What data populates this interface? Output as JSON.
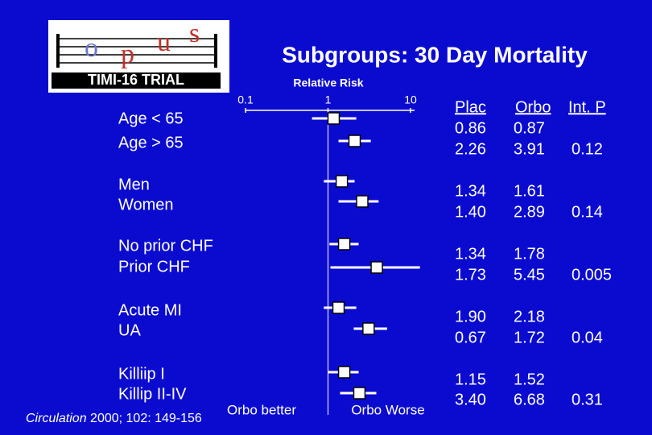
{
  "chart_data": {
    "type": "forest",
    "title": "Subgroups:  30 Day Mortality",
    "xlabel": "Relative Risk",
    "log_scale": true,
    "xlim": [
      0.1,
      10
    ],
    "xticks": [
      0.1,
      1,
      10
    ],
    "categories": [
      "Age < 65",
      "Age > 65",
      "Men",
      "Women",
      "No prior CHF",
      "Prior CHF",
      "Acute MI",
      "UA",
      "Killiip  I",
      "Killip  II-IV"
    ],
    "values": [
      1.17,
      2.1,
      1.47,
      2.6,
      1.57,
      3.9,
      1.34,
      3.1,
      1.57,
      2.4
    ],
    "ci_low": [
      0.64,
      1.34,
      0.89,
      1.34,
      1.04,
      1.07,
      0.89,
      2.05,
      1.0,
      1.4
    ],
    "ci_high": [
      2.2,
      3.3,
      2.1,
      4.1,
      2.35,
      13,
      2.2,
      5.2,
      2.35,
      3.85
    ],
    "color": "#ffffff",
    "annotations": [
      "Orbo better",
      "Orbo Worse"
    ]
  },
  "table": {
    "columns": [
      "Plac",
      "Orbo",
      "Int. P"
    ],
    "plac": [
      "0.86",
      "2.26",
      "1.34",
      "1.40",
      "1.34",
      "1.73",
      "1.90",
      "0.67",
      "1.15",
      "3.40"
    ],
    "orbo": [
      "0.87",
      "3.91",
      "1.61",
      "2.89",
      "1.78",
      "5.45",
      "2.18",
      "1.72",
      "1.52",
      "6.68"
    ],
    "p": [
      "0.12",
      "0.14",
      "0.005",
      "0.04",
      "0.31"
    ]
  },
  "logo": {
    "letters": [
      "o",
      "p",
      "u",
      "s"
    ],
    "caption": "TIMI-16 TRIAL"
  },
  "citation": {
    "journal": "Circulation",
    "reference": " 2000; 102: 149-156"
  }
}
